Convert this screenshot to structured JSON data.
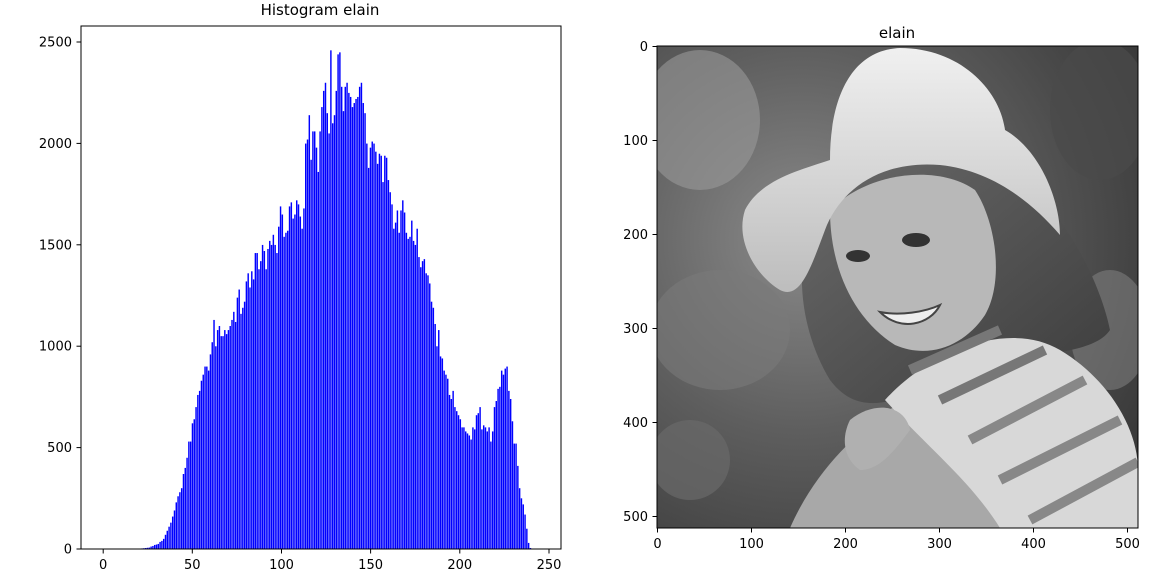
{
  "chart_data": [
    {
      "type": "bar",
      "title": "Histogram  elain",
      "color": "#0000ff",
      "xlim": [
        -12,
        255
      ],
      "ylim": [
        0,
        2580
      ],
      "xticks": [
        0,
        50,
        100,
        150,
        200,
        250
      ],
      "yticks": [
        0,
        500,
        1000,
        1500,
        2000,
        2500
      ],
      "xtick_labels": [
        "0",
        "50",
        "100",
        "150",
        "200",
        "250"
      ],
      "ytick_labels": [
        "0",
        "500",
        "1000",
        "1500",
        "2000",
        "2500"
      ],
      "bins_start": 0,
      "values": [
        0,
        0,
        0,
        0,
        0,
        0,
        0,
        0,
        0,
        0,
        0,
        0,
        0,
        0,
        0,
        0,
        0,
        0,
        1,
        1,
        2,
        2,
        3,
        4,
        5,
        6,
        7,
        12,
        15,
        20,
        22,
        25,
        35,
        40,
        50,
        70,
        90,
        110,
        130,
        160,
        190,
        230,
        260,
        280,
        300,
        370,
        400,
        450,
        530,
        530,
        620,
        640,
        700,
        760,
        780,
        830,
        860,
        900,
        900,
        880,
        960,
        1020,
        1130,
        1000,
        1080,
        1100,
        1050,
        1050,
        1080,
        1060,
        1080,
        1100,
        1130,
        1170,
        1120,
        1240,
        1280,
        1160,
        1190,
        1220,
        1320,
        1360,
        1290,
        1370,
        1330,
        1460,
        1460,
        1380,
        1420,
        1500,
        1470,
        1380,
        1480,
        1520,
        1500,
        1550,
        1500,
        1460,
        1590,
        1690,
        1650,
        1540,
        1560,
        1570,
        1690,
        1710,
        1630,
        1650,
        1720,
        1700,
        1640,
        1580,
        1680,
        2000,
        2020,
        2140,
        1920,
        2060,
        2060,
        1980,
        1860,
        2060,
        2180,
        2260,
        2300,
        2150,
        2050,
        2460,
        2100,
        2140,
        2260,
        2440,
        2450,
        2280,
        2160,
        2280,
        2300,
        2250,
        2230,
        2180,
        2200,
        2220,
        2230,
        2280,
        2300,
        2200,
        2150,
        2000,
        1880,
        1980,
        2010,
        2000,
        1960,
        1900,
        1950,
        1940,
        1810,
        1940,
        1930,
        1820,
        1760,
        1700,
        1580,
        1610,
        1670,
        1560,
        1670,
        1720,
        1660,
        1560,
        1530,
        1540,
        1620,
        1520,
        1500,
        1580,
        1440,
        1390,
        1420,
        1430,
        1360,
        1350,
        1310,
        1220,
        1190,
        1110,
        1000,
        1080,
        950,
        940,
        880,
        860,
        840,
        760,
        740,
        780,
        700,
        680,
        660,
        640,
        600,
        600,
        580,
        570,
        560,
        540,
        600,
        590,
        660,
        670,
        700,
        590,
        610,
        600,
        580,
        600,
        530,
        580,
        700,
        730,
        790,
        800,
        880,
        860,
        890,
        900,
        780,
        740,
        630,
        520,
        520,
        410,
        300,
        250,
        220,
        170,
        100,
        30,
        5,
        2,
        0,
        0,
        0,
        0,
        0,
        0
      ]
    },
    {
      "type": "image",
      "title": "elain",
      "image_description": "grayscale photograph",
      "xlim": [
        0,
        511
      ],
      "ylim": [
        511,
        0
      ],
      "xticks": [
        0,
        100,
        200,
        300,
        400,
        500
      ],
      "yticks": [
        0,
        100,
        200,
        300,
        400,
        500
      ],
      "xtick_labels": [
        "0",
        "100",
        "200",
        "300",
        "400",
        "500"
      ],
      "ytick_labels": [
        "0",
        "100",
        "200",
        "300",
        "400",
        "500"
      ]
    }
  ]
}
